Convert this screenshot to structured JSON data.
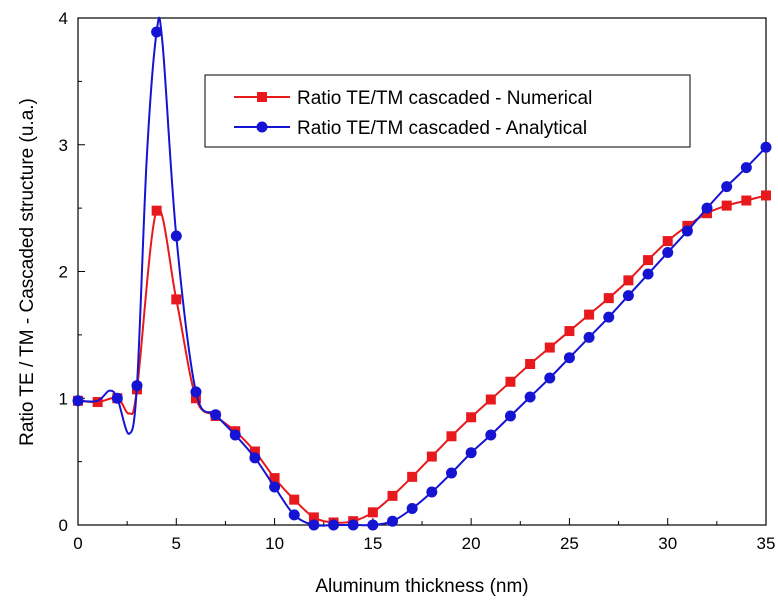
{
  "chart_data": {
    "type": "line",
    "xlabel": "Aluminum thickness (nm)",
    "ylabel": "Ratio TE / TM - Cascaded structure (u.a.)",
    "xlim": [
      0,
      35
    ],
    "ylim": [
      0,
      4
    ],
    "xticks": [
      0,
      5,
      10,
      15,
      20,
      25,
      30,
      35
    ],
    "yticks": [
      0,
      1,
      2,
      3,
      4
    ],
    "grid": false,
    "legend_position": "top-right",
    "series": [
      {
        "name": "Ratio TE/TM cascaded - Numerical",
        "color": "#e8191d",
        "marker": "square",
        "x": [
          0,
          1,
          2,
          2.6,
          3,
          4,
          5,
          6,
          7,
          8,
          9,
          10,
          11,
          12,
          13,
          14,
          15,
          16,
          17,
          18,
          19,
          20,
          21,
          22,
          23,
          24,
          25,
          26,
          27,
          28,
          29,
          30,
          31,
          32,
          33,
          34,
          35
        ],
        "y": [
          0.98,
          0.97,
          1.0,
          0.88,
          1.07,
          2.48,
          1.78,
          1.0,
          0.86,
          0.74,
          0.58,
          0.37,
          0.2,
          0.06,
          0.02,
          0.03,
          0.1,
          0.23,
          0.38,
          0.54,
          0.7,
          0.85,
          0.99,
          1.13,
          1.27,
          1.4,
          1.53,
          1.66,
          1.79,
          1.93,
          2.09,
          2.24,
          2.36,
          2.46,
          2.52,
          2.56,
          2.6
        ],
        "markers_at": [
          0,
          1,
          2,
          3,
          4,
          5,
          6,
          7,
          8,
          9,
          10,
          11,
          12,
          13,
          14,
          15,
          16,
          17,
          18,
          19,
          20,
          21,
          22,
          23,
          24,
          25,
          26,
          27,
          28,
          29,
          30,
          31,
          32,
          33,
          34,
          35
        ]
      },
      {
        "name": "Ratio TE/TM cascaded - Analytical",
        "color": "#1414d2",
        "marker": "circle",
        "x": [
          0,
          1,
          1.6,
          2,
          2.6,
          3,
          3.5,
          4,
          4.3,
          5,
          6,
          7,
          8,
          9,
          10,
          11,
          12,
          13,
          14,
          15,
          16,
          17,
          18,
          19,
          20,
          21,
          22,
          23,
          24,
          25,
          26,
          27,
          28,
          29,
          30,
          31,
          32,
          33,
          34,
          35
        ],
        "y": [
          0.98,
          0.98,
          1.06,
          1.0,
          0.72,
          1.1,
          2.9,
          3.89,
          3.8,
          2.28,
          1.05,
          0.87,
          0.71,
          0.53,
          0.3,
          0.08,
          0.0,
          0.0,
          0.0,
          0.0,
          0.03,
          0.13,
          0.26,
          0.41,
          0.57,
          0.71,
          0.86,
          1.01,
          1.16,
          1.32,
          1.48,
          1.64,
          1.81,
          1.98,
          2.15,
          2.32,
          2.5,
          2.67,
          2.82,
          2.98
        ],
        "markers_at": [
          0,
          2,
          3,
          4,
          5,
          6,
          7,
          8,
          9,
          10,
          11,
          12,
          13,
          14,
          15,
          16,
          17,
          18,
          19,
          20,
          21,
          22,
          23,
          24,
          25,
          26,
          27,
          28,
          29,
          30,
          31,
          32,
          33,
          34,
          35
        ]
      }
    ]
  }
}
